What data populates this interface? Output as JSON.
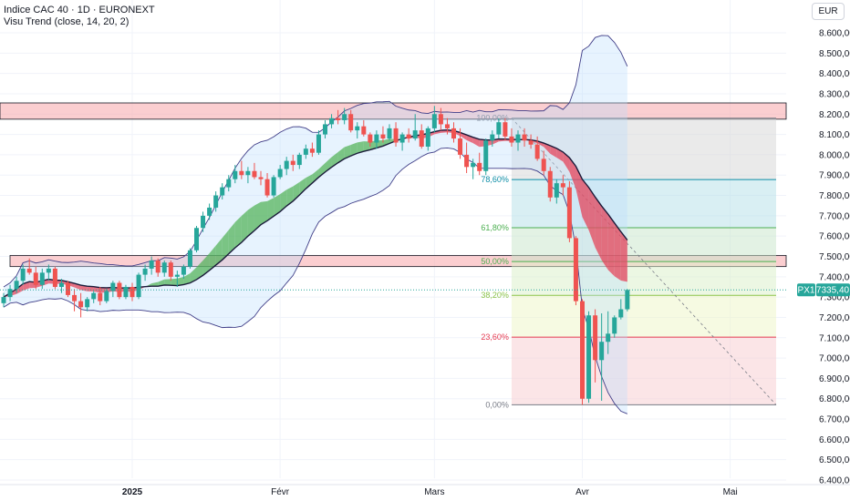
{
  "header": {
    "title": "Indice CAC 40 · 1D · EURONEXT",
    "indicator": "Visu Trend (close, 14, 20, 2)",
    "currency": "EUR"
  },
  "price_badge": {
    "label": "PX1",
    "value": "7335,40"
  },
  "colors": {
    "bull": "#26a69a",
    "bear": "#ef5350",
    "trend_up": "#4caf50",
    "trend_down": "#e53950",
    "band_fill": "#bbdefb",
    "band_line": "#3f3d87",
    "zone": "#f7a6aa",
    "badge": "#26a69a"
  },
  "chart_data": {
    "type": "candlestick",
    "symbol": "CAC 40",
    "interval": "1D",
    "ylim": [
      6400,
      8650
    ],
    "y_ticks": [
      8600,
      8500,
      8400,
      8300,
      8200,
      8100,
      8000,
      7900,
      7800,
      7700,
      7600,
      7500,
      7400,
      7300,
      7200,
      7100,
      7000,
      6900,
      6800,
      6700,
      6600,
      6500,
      6400
    ],
    "y_tick_labels": [
      "8.600,00",
      "8.500,00",
      "8.400,00",
      "8.300,00",
      "8.200,00",
      "8.100,00",
      "8.000,00",
      "7.900,00",
      "7.800,00",
      "7.700,00",
      "7.600,00",
      "7.500,00",
      "7.400,00",
      "7.300,00",
      "7.200,00",
      "7.100,00",
      "7.000,00",
      "6.900,00",
      "6.800,00",
      "6.700,00",
      "6.600,00",
      "6.500,00",
      "6.400,00"
    ],
    "x_tick_labels": [
      {
        "label": "2025",
        "index": 20
      },
      {
        "label": "Févr",
        "index": 43
      },
      {
        "label": "Mars",
        "index": 67
      },
      {
        "label": "Avr",
        "index": 90
      },
      {
        "label": "Mai",
        "index": 113
      }
    ],
    "candles": [
      {
        "o": 7270,
        "h": 7320,
        "l": 7250,
        "c": 7300
      },
      {
        "o": 7300,
        "h": 7360,
        "l": 7280,
        "c": 7340
      },
      {
        "o": 7340,
        "h": 7400,
        "l": 7320,
        "c": 7380
      },
      {
        "o": 7380,
        "h": 7460,
        "l": 7360,
        "c": 7440
      },
      {
        "o": 7440,
        "h": 7490,
        "l": 7410,
        "c": 7420
      },
      {
        "o": 7420,
        "h": 7450,
        "l": 7340,
        "c": 7360
      },
      {
        "o": 7360,
        "h": 7440,
        "l": 7340,
        "c": 7420
      },
      {
        "o": 7420,
        "h": 7460,
        "l": 7380,
        "c": 7440
      },
      {
        "o": 7440,
        "h": 7450,
        "l": 7340,
        "c": 7350
      },
      {
        "o": 7350,
        "h": 7390,
        "l": 7320,
        "c": 7370
      },
      {
        "o": 7370,
        "h": 7380,
        "l": 7300,
        "c": 7310
      },
      {
        "o": 7310,
        "h": 7340,
        "l": 7230,
        "c": 7280
      },
      {
        "o": 7280,
        "h": 7320,
        "l": 7200,
        "c": 7250
      },
      {
        "o": 7250,
        "h": 7300,
        "l": 7230,
        "c": 7290
      },
      {
        "o": 7290,
        "h": 7330,
        "l": 7270,
        "c": 7320
      },
      {
        "o": 7320,
        "h": 7350,
        "l": 7260,
        "c": 7280
      },
      {
        "o": 7280,
        "h": 7340,
        "l": 7270,
        "c": 7330
      },
      {
        "o": 7330,
        "h": 7380,
        "l": 7300,
        "c": 7370
      },
      {
        "o": 7370,
        "h": 7380,
        "l": 7290,
        "c": 7300
      },
      {
        "o": 7300,
        "h": 7360,
        "l": 7290,
        "c": 7350
      },
      {
        "o": 7350,
        "h": 7370,
        "l": 7280,
        "c": 7300
      },
      {
        "o": 7300,
        "h": 7420,
        "l": 7290,
        "c": 7410
      },
      {
        "o": 7410,
        "h": 7460,
        "l": 7380,
        "c": 7440
      },
      {
        "o": 7440,
        "h": 7500,
        "l": 7410,
        "c": 7480
      },
      {
        "o": 7480,
        "h": 7490,
        "l": 7400,
        "c": 7420
      },
      {
        "o": 7420,
        "h": 7480,
        "l": 7400,
        "c": 7470
      },
      {
        "o": 7470,
        "h": 7480,
        "l": 7380,
        "c": 7400
      },
      {
        "o": 7400,
        "h": 7430,
        "l": 7350,
        "c": 7410
      },
      {
        "o": 7410,
        "h": 7460,
        "l": 7390,
        "c": 7450
      },
      {
        "o": 7450,
        "h": 7540,
        "l": 7440,
        "c": 7530
      },
      {
        "o": 7530,
        "h": 7650,
        "l": 7520,
        "c": 7640
      },
      {
        "o": 7640,
        "h": 7720,
        "l": 7620,
        "c": 7700
      },
      {
        "o": 7700,
        "h": 7760,
        "l": 7680,
        "c": 7740
      },
      {
        "o": 7740,
        "h": 7820,
        "l": 7720,
        "c": 7800
      },
      {
        "o": 7800,
        "h": 7860,
        "l": 7780,
        "c": 7840
      },
      {
        "o": 7840,
        "h": 7900,
        "l": 7820,
        "c": 7880
      },
      {
        "o": 7880,
        "h": 7950,
        "l": 7860,
        "c": 7920
      },
      {
        "o": 7920,
        "h": 7970,
        "l": 7880,
        "c": 7900
      },
      {
        "o": 7900,
        "h": 7940,
        "l": 7860,
        "c": 7920
      },
      {
        "o": 7920,
        "h": 7960,
        "l": 7880,
        "c": 7890
      },
      {
        "o": 7890,
        "h": 7920,
        "l": 7850,
        "c": 7880
      },
      {
        "o": 7880,
        "h": 7910,
        "l": 7790,
        "c": 7800
      },
      {
        "o": 7800,
        "h": 7900,
        "l": 7790,
        "c": 7890
      },
      {
        "o": 7890,
        "h": 7950,
        "l": 7880,
        "c": 7930
      },
      {
        "o": 7930,
        "h": 7990,
        "l": 7900,
        "c": 7970
      },
      {
        "o": 7970,
        "h": 8000,
        "l": 7920,
        "c": 7950
      },
      {
        "o": 7950,
        "h": 8010,
        "l": 7930,
        "c": 8000
      },
      {
        "o": 8000,
        "h": 8050,
        "l": 7980,
        "c": 8030
      },
      {
        "o": 8030,
        "h": 8060,
        "l": 7990,
        "c": 8010
      },
      {
        "o": 8010,
        "h": 8120,
        "l": 8000,
        "c": 8100
      },
      {
        "o": 8100,
        "h": 8170,
        "l": 8080,
        "c": 8150
      },
      {
        "o": 8150,
        "h": 8200,
        "l": 8130,
        "c": 8180
      },
      {
        "o": 8180,
        "h": 8220,
        "l": 8150,
        "c": 8170
      },
      {
        "o": 8170,
        "h": 8230,
        "l": 8150,
        "c": 8200
      },
      {
        "o": 8200,
        "h": 8220,
        "l": 8110,
        "c": 8120
      },
      {
        "o": 8120,
        "h": 8160,
        "l": 8080,
        "c": 8140
      },
      {
        "o": 8140,
        "h": 8170,
        "l": 8090,
        "c": 8100
      },
      {
        "o": 8100,
        "h": 8110,
        "l": 8040,
        "c": 8060
      },
      {
        "o": 8060,
        "h": 8120,
        "l": 8030,
        "c": 8100
      },
      {
        "o": 8100,
        "h": 8140,
        "l": 8060,
        "c": 8080
      },
      {
        "o": 8080,
        "h": 8150,
        "l": 8070,
        "c": 8130
      },
      {
        "o": 8130,
        "h": 8160,
        "l": 8040,
        "c": 8060
      },
      {
        "o": 8060,
        "h": 8110,
        "l": 8020,
        "c": 8100
      },
      {
        "o": 8100,
        "h": 8130,
        "l": 8060,
        "c": 8080
      },
      {
        "o": 8080,
        "h": 8200,
        "l": 8070,
        "c": 8120
      },
      {
        "o": 8120,
        "h": 8150,
        "l": 8030,
        "c": 8040
      },
      {
        "o": 8040,
        "h": 8140,
        "l": 8020,
        "c": 8130
      },
      {
        "o": 8130,
        "h": 8240,
        "l": 8110,
        "c": 8200
      },
      {
        "o": 8200,
        "h": 8230,
        "l": 8120,
        "c": 8150
      },
      {
        "o": 8150,
        "h": 8180,
        "l": 8100,
        "c": 8130
      },
      {
        "o": 8130,
        "h": 8160,
        "l": 8060,
        "c": 8080
      },
      {
        "o": 8080,
        "h": 8130,
        "l": 7980,
        "c": 8000
      },
      {
        "o": 8000,
        "h": 8060,
        "l": 7910,
        "c": 7940
      },
      {
        "o": 7940,
        "h": 7980,
        "l": 7880,
        "c": 7960
      },
      {
        "o": 7960,
        "h": 8010,
        "l": 7900,
        "c": 7920
      },
      {
        "o": 7920,
        "h": 8080,
        "l": 7900,
        "c": 8070
      },
      {
        "o": 8070,
        "h": 8120,
        "l": 8040,
        "c": 8100
      },
      {
        "o": 8100,
        "h": 8180,
        "l": 8080,
        "c": 8160
      },
      {
        "o": 8160,
        "h": 8180,
        "l": 8070,
        "c": 8090
      },
      {
        "o": 8090,
        "h": 8130,
        "l": 8040,
        "c": 8060
      },
      {
        "o": 8060,
        "h": 8120,
        "l": 8020,
        "c": 8100
      },
      {
        "o": 8100,
        "h": 8130,
        "l": 8040,
        "c": 8070
      },
      {
        "o": 8070,
        "h": 8100,
        "l": 8030,
        "c": 8050
      },
      {
        "o": 8050,
        "h": 8090,
        "l": 7970,
        "c": 7980
      },
      {
        "o": 7980,
        "h": 8020,
        "l": 7900,
        "c": 7920
      },
      {
        "o": 7920,
        "h": 7940,
        "l": 7770,
        "c": 7790
      },
      {
        "o": 7790,
        "h": 7880,
        "l": 7760,
        "c": 7860
      },
      {
        "o": 7860,
        "h": 7900,
        "l": 7800,
        "c": 7840
      },
      {
        "o": 7840,
        "h": 7870,
        "l": 7570,
        "c": 7590
      },
      {
        "o": 7590,
        "h": 7600,
        "l": 7260,
        "c": 7280
      },
      {
        "o": 7280,
        "h": 7290,
        "l": 6770,
        "c": 6800
      },
      {
        "o": 6800,
        "h": 7230,
        "l": 6780,
        "c": 7210
      },
      {
        "o": 7210,
        "h": 7240,
        "l": 6880,
        "c": 6990
      },
      {
        "o": 6990,
        "h": 7220,
        "l": 6790,
        "c": 7080
      },
      {
        "o": 7080,
        "h": 7230,
        "l": 7020,
        "c": 7120
      },
      {
        "o": 7120,
        "h": 7210,
        "l": 7100,
        "c": 7200
      },
      {
        "o": 7200,
        "h": 7290,
        "l": 7190,
        "c": 7240
      },
      {
        "o": 7240,
        "h": 7340,
        "l": 7230,
        "c": 7335
      }
    ],
    "resistance_zones": [
      {
        "from": 8175,
        "to": 8255
      },
      {
        "from": 7450,
        "to": 7505
      }
    ],
    "fibonacci": {
      "from_index": 79,
      "to_index": 128,
      "high": 8180,
      "low": 6770,
      "levels": [
        {
          "ratio": 1.0,
          "label": "100,00%",
          "color": "#787b86",
          "fill": "#d6d6d6"
        },
        {
          "ratio": 0.786,
          "label": "78,60%",
          "color": "#0b8ca6",
          "fill": "#b3e0e8"
        },
        {
          "ratio": 0.618,
          "label": "61,80%",
          "color": "#4caf50",
          "fill": "#c8e6c9"
        },
        {
          "ratio": 0.5,
          "label": "50,00%",
          "color": "#4caf50",
          "fill": "#d9efc7"
        },
        {
          "ratio": 0.382,
          "label": "38,20%",
          "color": "#8bc34a",
          "fill": "#eef5c6"
        },
        {
          "ratio": 0.236,
          "label": "23,60%",
          "color": "#e53950",
          "fill": "#f8cccf"
        },
        {
          "ratio": 0.0,
          "label": "0,00%",
          "color": "#787b86",
          "fill": null
        }
      ]
    },
    "last_price": 7335.4
  }
}
